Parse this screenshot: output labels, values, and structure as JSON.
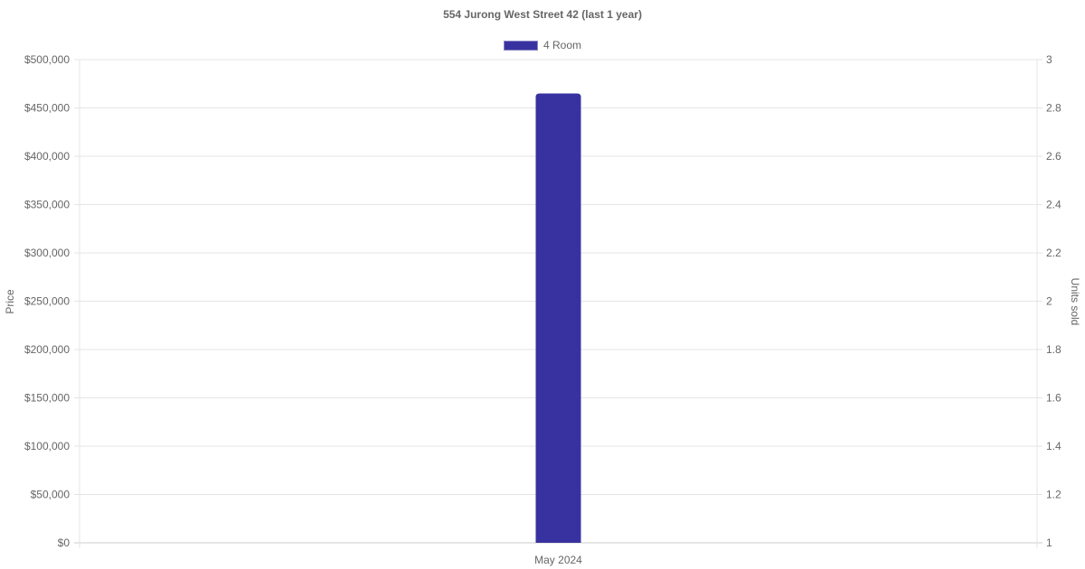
{
  "chart_data": {
    "type": "bar",
    "title": "554 Jurong West Street 42 (last 1 year)",
    "categories": [
      "May 2024"
    ],
    "series": [
      {
        "name": "4 Room",
        "values": [
          465000
        ],
        "color": "#3832a0"
      }
    ],
    "ylabel": "Price",
    "ylim": [
      0,
      500000
    ],
    "yticks": [
      "$0",
      "$50,000",
      "$100,000",
      "$150,000",
      "$200,000",
      "$250,000",
      "$300,000",
      "$350,000",
      "$400,000",
      "$450,000",
      "$500,000"
    ],
    "y2label": "Units sold",
    "y2lim": [
      1,
      3
    ],
    "y2ticks": [
      "1",
      "1.2",
      "1.4",
      "1.6",
      "1.8",
      "2",
      "2.2",
      "2.4",
      "2.6",
      "2.8",
      "3"
    ],
    "grid": true,
    "legend": "top"
  }
}
